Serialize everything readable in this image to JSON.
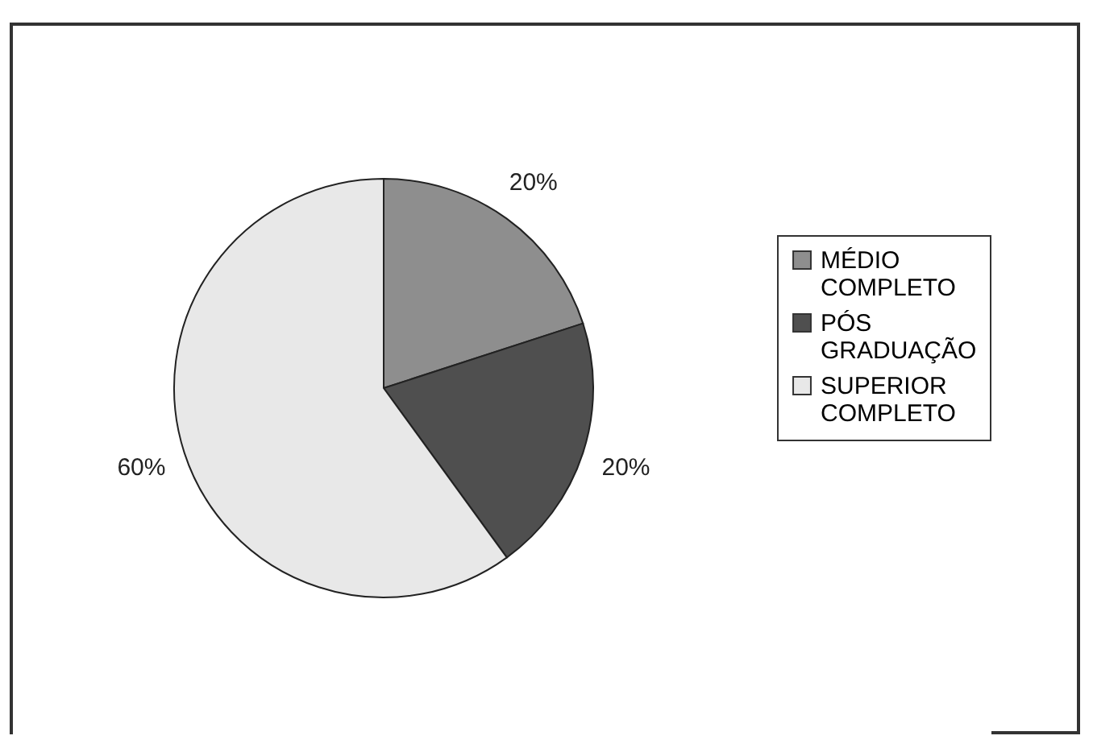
{
  "chart_data": {
    "type": "pie",
    "categories": [
      "MÉDIO COMPLETO",
      "PÓS GRADUAÇÃO",
      "SUPERIOR COMPLETO"
    ],
    "values": [
      20,
      20,
      60
    ],
    "colors": [
      "#8e8e8e",
      "#4f4f4f",
      "#e8e8e8"
    ],
    "data_labels": true,
    "value_labels": [
      "20%",
      "20%",
      "60%"
    ],
    "legend": "right"
  }
}
